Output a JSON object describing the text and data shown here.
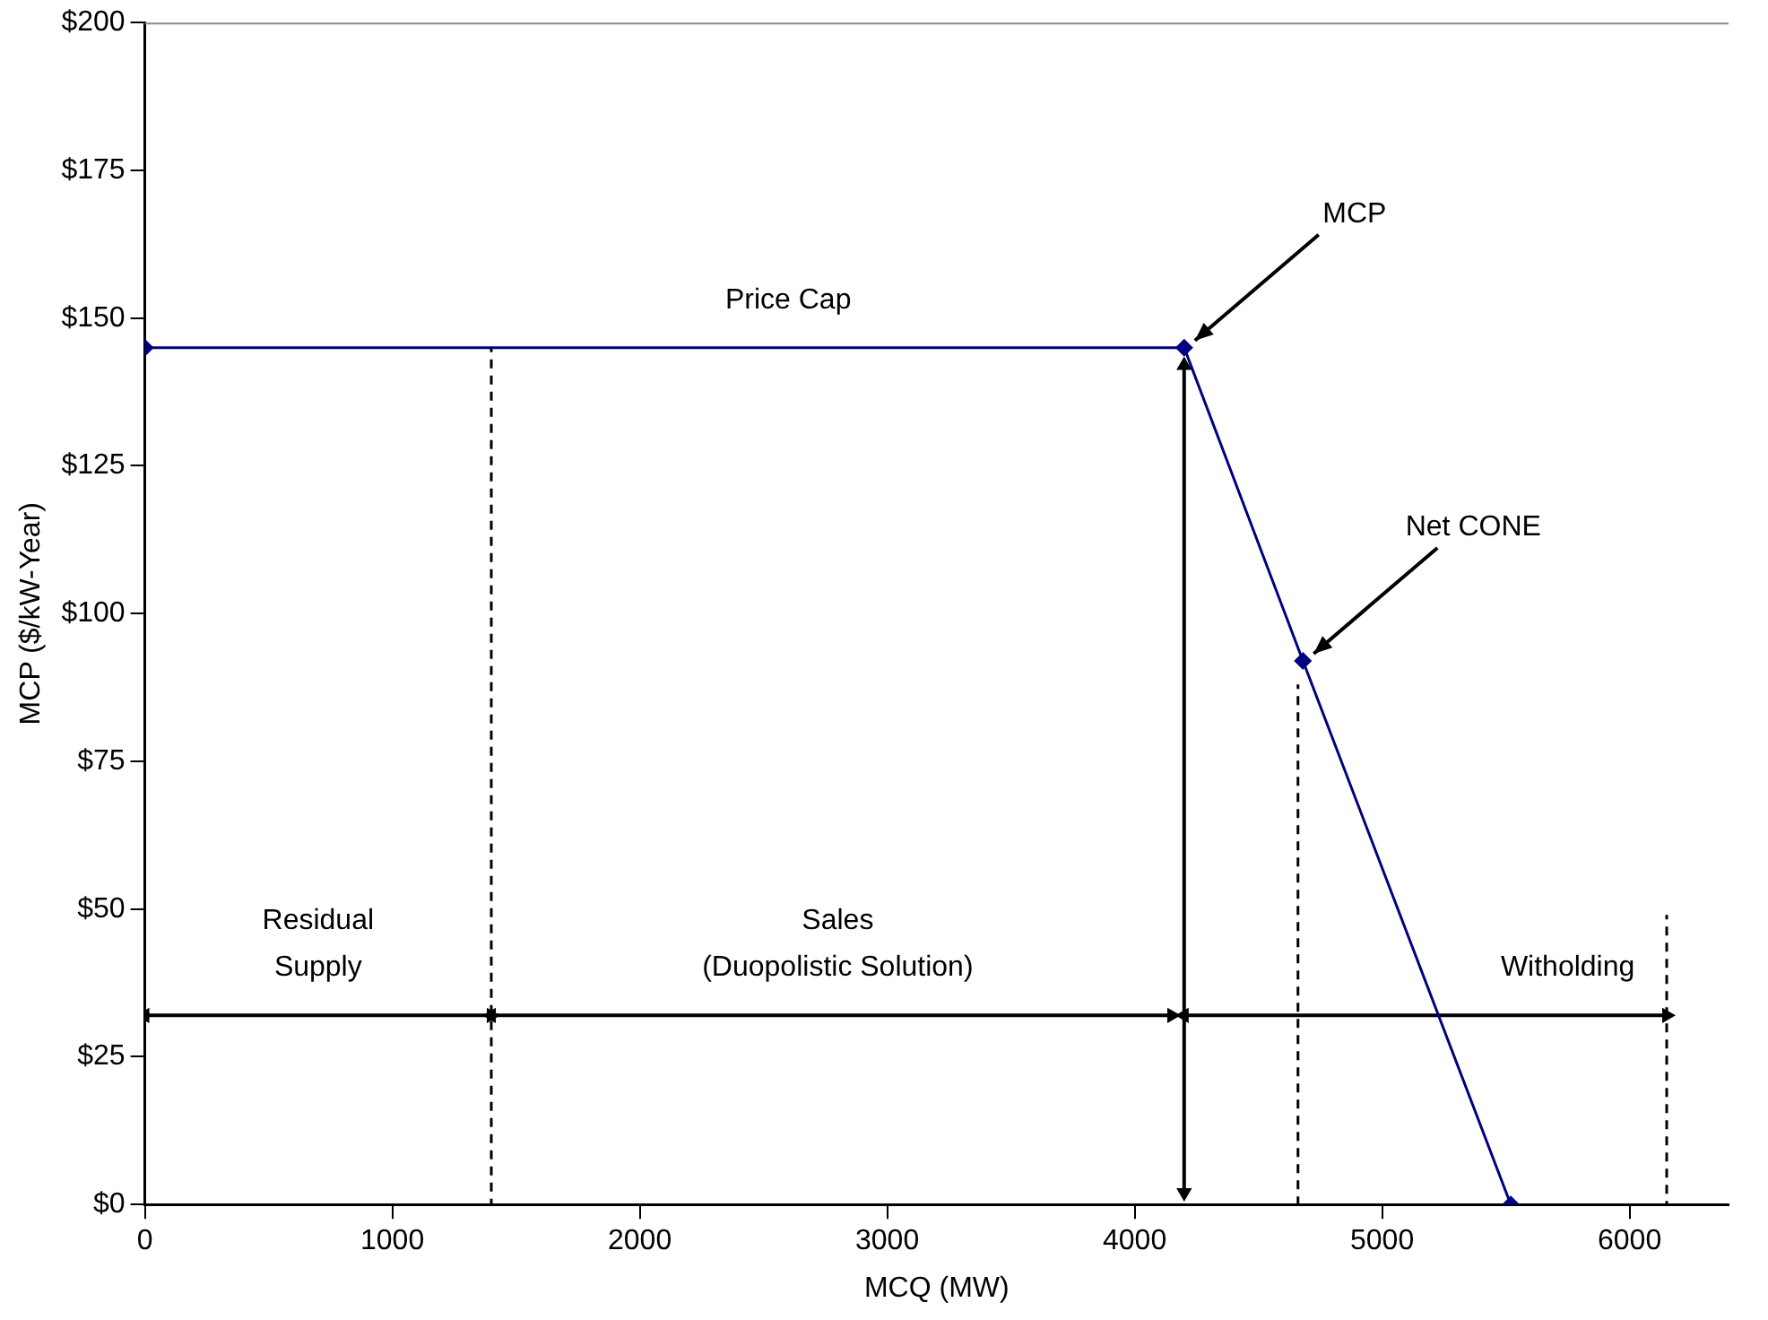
{
  "chart_data": {
    "type": "line",
    "xlabel": "MCQ (MW)",
    "ylabel": "MCP ($/kW-Year)",
    "xlim": [
      0,
      6400
    ],
    "xticks": [
      0,
      1000,
      2000,
      3000,
      4000,
      5000,
      6000
    ],
    "ylim": [
      0,
      200
    ],
    "yticks": [
      {
        "value": 0,
        "label": "$0"
      },
      {
        "value": 25,
        "label": "$25"
      },
      {
        "value": 50,
        "label": "$50"
      },
      {
        "value": 75,
        "label": "$75"
      },
      {
        "value": 100,
        "label": "$100"
      },
      {
        "value": 125,
        "label": "$125"
      },
      {
        "value": 150,
        "label": "$150"
      },
      {
        "value": 175,
        "label": "$175"
      },
      {
        "value": 200,
        "label": "$200"
      }
    ],
    "series": [
      {
        "color": "#000080",
        "x": [
          0,
          4200,
          4680,
          5520
        ],
        "values": [
          145,
          145,
          92,
          0
        ],
        "marker": "diamond",
        "line_style": "solid"
      },
      {
        "color": "#000000",
        "x": [
          1400,
          1400
        ],
        "values": [
          0,
          145
        ],
        "marker": "none",
        "line_style": "dashed"
      },
      {
        "color": "#000000",
        "x": [
          4660,
          4660
        ],
        "values": [
          0,
          88
        ],
        "marker": "none",
        "line_style": "dashed"
      },
      {
        "color": "#000000",
        "x": [
          6150,
          6150
        ],
        "values": [
          0,
          49
        ],
        "marker": "none",
        "line_style": "dashed"
      },
      {
        "color": "#000000",
        "x": [
          0,
          1400
        ],
        "values": [
          32,
          32
        ],
        "marker": "triangle",
        "line_style": "solid"
      },
      {
        "color": "#000000",
        "x": [
          1400,
          4150
        ],
        "values": [
          32,
          32
        ],
        "marker": "triangle",
        "line_style": "solid"
      },
      {
        "color": "#000000",
        "x": [
          4200,
          6150
        ],
        "values": [
          32,
          32
        ],
        "marker": "triangle",
        "line_style": "solid"
      },
      {
        "color": "#000000",
        "x": [
          4200,
          4200
        ],
        "values": [
          2,
          142
        ],
        "marker": "triangle",
        "line_style": "solid"
      }
    ],
    "annotations": [
      {
        "text": "Price Cap",
        "x": 2600,
        "y": 145
      },
      {
        "text": "MCP",
        "x": 4200,
        "y": 145
      },
      {
        "text": "Net CONE",
        "x": 4680,
        "y": 92
      },
      {
        "text": "Residual\nSupply",
        "x": 700,
        "y": 32
      },
      {
        "text": "Sales\n(Duopolistic Solution)",
        "x": 2800,
        "y": 32
      },
      {
        "text": "Witholding",
        "x": 5750,
        "y": 32
      }
    ],
    "grid": false,
    "legend": false
  }
}
